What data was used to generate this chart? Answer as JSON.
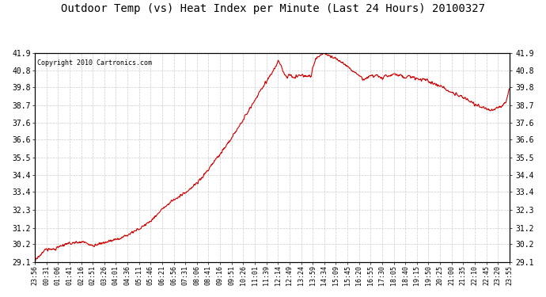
{
  "title": "Outdoor Temp (vs) Heat Index per Minute (Last 24 Hours) 20100327",
  "copyright": "Copyright 2010 Cartronics.com",
  "line_color": "#cc0000",
  "bg_color": "#ffffff",
  "plot_bg_color": "#ffffff",
  "grid_color": "#cccccc",
  "ylim": [
    29.1,
    41.9
  ],
  "yticks": [
    29.1,
    30.2,
    31.2,
    32.3,
    33.4,
    34.4,
    35.5,
    36.6,
    37.6,
    38.7,
    39.8,
    40.8,
    41.9
  ],
  "xtick_labels": [
    "23:56",
    "00:31",
    "01:06",
    "01:41",
    "02:16",
    "02:51",
    "03:26",
    "04:01",
    "04:36",
    "05:11",
    "05:46",
    "06:21",
    "06:56",
    "07:31",
    "08:06",
    "08:41",
    "09:16",
    "09:51",
    "10:26",
    "11:01",
    "11:39",
    "12:14",
    "12:49",
    "13:24",
    "13:59",
    "14:34",
    "15:09",
    "15:45",
    "16:20",
    "16:55",
    "17:30",
    "18:05",
    "18:40",
    "19:15",
    "19:50",
    "20:25",
    "21:00",
    "21:35",
    "22:10",
    "22:45",
    "23:20",
    "23:55"
  ],
  "key_x": [
    0,
    30,
    60,
    90,
    110,
    130,
    145,
    160,
    175,
    195,
    215,
    240,
    265,
    290,
    315,
    350,
    385,
    420,
    455,
    490,
    520,
    550,
    580,
    610,
    635,
    655,
    675,
    695,
    710,
    720,
    730,
    738,
    748,
    755,
    765,
    773,
    783,
    793,
    808,
    818,
    828,
    838,
    843,
    853,
    863,
    873,
    878,
    888,
    900,
    913,
    925,
    937,
    949,
    960,
    970,
    980,
    984,
    995,
    1005,
    1015,
    1019,
    1030,
    1040,
    1054,
    1065,
    1075,
    1089,
    1100,
    1110,
    1124,
    1135,
    1148,
    1159,
    1170,
    1182,
    1194,
    1205,
    1217,
    1229,
    1241,
    1253,
    1264,
    1276,
    1288,
    1299,
    1310,
    1320,
    1334,
    1345,
    1357,
    1369,
    1380,
    1392,
    1404,
    1415,
    1427,
    1439
  ],
  "key_y": [
    29.15,
    29.85,
    29.9,
    30.15,
    30.25,
    30.3,
    30.35,
    30.2,
    30.1,
    30.2,
    30.3,
    30.45,
    30.6,
    30.9,
    31.1,
    31.6,
    32.3,
    32.9,
    33.3,
    33.9,
    34.6,
    35.4,
    36.2,
    37.1,
    37.9,
    38.6,
    39.3,
    39.9,
    40.4,
    40.75,
    41.1,
    41.4,
    41.05,
    40.65,
    40.45,
    40.55,
    40.35,
    40.5,
    40.55,
    40.45,
    40.5,
    40.45,
    41.05,
    41.55,
    41.75,
    41.85,
    41.9,
    41.8,
    41.65,
    41.55,
    41.35,
    41.2,
    41.1,
    40.85,
    40.7,
    40.55,
    40.5,
    40.25,
    40.35,
    40.5,
    40.55,
    40.45,
    40.5,
    40.35,
    40.55,
    40.45,
    40.65,
    40.5,
    40.5,
    40.4,
    40.45,
    40.4,
    40.35,
    40.3,
    40.25,
    40.15,
    40.05,
    39.95,
    39.85,
    39.75,
    39.6,
    39.45,
    39.35,
    39.25,
    39.15,
    39.05,
    38.95,
    38.75,
    38.65,
    38.55,
    38.45,
    38.4,
    38.45,
    38.55,
    38.65,
    38.8,
    39.8
  ]
}
